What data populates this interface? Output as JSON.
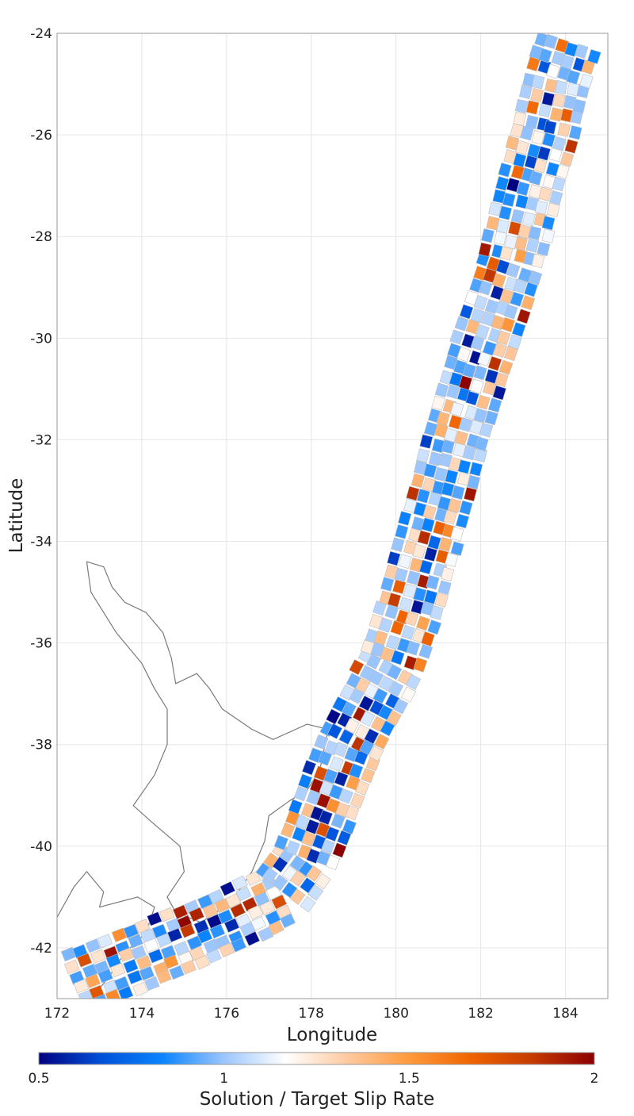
{
  "colors": {
    "background": "#ffffff",
    "frame": "#9a9a9a",
    "grid": "#e6e6e6",
    "coastline": "#7a7a7a",
    "patch_outline": "#bdbdbd",
    "colormap_stops": [
      "#000080",
      "#0050d8",
      "#0a84ff",
      "#9cc6ff",
      "#ffffff",
      "#ffc9a0",
      "#ff9a3c",
      "#f06400",
      "#c43a00",
      "#8b0000"
    ]
  },
  "chart_data": {
    "type": "heatmap",
    "map_type": "fault-section slip-rate ratio map",
    "xlabel": "Longitude",
    "ylabel": "Latitude",
    "xlim": [
      172,
      185
    ],
    "ylim": [
      -43,
      -24
    ],
    "x_ticks": [
      "172",
      "174",
      "176",
      "178",
      "180",
      "182",
      "184"
    ],
    "y_ticks": [
      "-24",
      "-26",
      "-28",
      "-30",
      "-32",
      "-34",
      "-36",
      "-38",
      "-40",
      "-42"
    ],
    "grid": true,
    "colorbar": {
      "title": "Solution / Target Slip Rate",
      "range": [
        0.5,
        2
      ],
      "tick_labels": [
        "0.5",
        "1",
        "1.5",
        "2"
      ],
      "placement": "bottom"
    },
    "subduction_centerline": [
      [
        172.4,
        -42.7
      ],
      [
        173.6,
        -42.3
      ],
      [
        175.1,
        -41.8
      ],
      [
        176.2,
        -41.4
      ],
      [
        177.2,
        -41.0
      ],
      [
        177.9,
        -40.2
      ],
      [
        178.4,
        -39.1
      ],
      [
        178.9,
        -38.0
      ],
      [
        179.4,
        -37.2
      ],
      [
        179.9,
        -36.4
      ],
      [
        180.3,
        -35.4
      ],
      [
        180.7,
        -34.2
      ],
      [
        181.1,
        -33.0
      ],
      [
        181.4,
        -32.0
      ],
      [
        181.9,
        -30.6
      ],
      [
        182.3,
        -29.6
      ],
      [
        182.7,
        -28.6
      ],
      [
        183.1,
        -27.2
      ],
      [
        183.5,
        -26.0
      ],
      [
        183.8,
        -24.9
      ],
      [
        184.1,
        -24.1
      ]
    ],
    "coastline": [
      [
        172.7,
        -34.4
      ],
      [
        173.1,
        -34.5
      ],
      [
        173.3,
        -34.9
      ],
      [
        173.6,
        -35.2
      ],
      [
        174.1,
        -35.4
      ],
      [
        174.5,
        -35.8
      ],
      [
        174.7,
        -36.3
      ],
      [
        174.8,
        -36.8
      ],
      [
        175.3,
        -36.6
      ],
      [
        175.6,
        -36.9
      ],
      [
        175.9,
        -37.3
      ],
      [
        176.6,
        -37.7
      ],
      [
        177.1,
        -37.9
      ],
      [
        177.9,
        -37.6
      ],
      [
        178.4,
        -37.7
      ],
      [
        178.2,
        -38.5
      ],
      [
        177.9,
        -38.9
      ],
      [
        177.5,
        -39.1
      ],
      [
        177.0,
        -39.4
      ],
      [
        176.9,
        -39.9
      ],
      [
        176.6,
        -40.5
      ],
      [
        176.1,
        -41.1
      ],
      [
        175.4,
        -41.5
      ],
      [
        174.8,
        -41.3
      ],
      [
        174.6,
        -41.0
      ],
      [
        175.0,
        -40.5
      ],
      [
        174.9,
        -40.0
      ],
      [
        174.2,
        -39.5
      ],
      [
        173.8,
        -39.2
      ],
      [
        174.3,
        -38.6
      ],
      [
        174.6,
        -38.0
      ],
      [
        174.6,
        -37.3
      ],
      [
        174.3,
        -36.9
      ],
      [
        174.0,
        -36.4
      ],
      [
        173.4,
        -35.8
      ],
      [
        172.8,
        -35.0
      ],
      [
        172.7,
        -34.4
      ]
    ],
    "coastline_south": [
      [
        172.0,
        -41.4
      ],
      [
        172.4,
        -40.8
      ],
      [
        172.7,
        -40.5
      ],
      [
        173.1,
        -40.9
      ],
      [
        173.0,
        -41.2
      ],
      [
        173.9,
        -41.0
      ],
      [
        174.3,
        -41.2
      ],
      [
        174.1,
        -41.7
      ],
      [
        173.6,
        -42.1
      ],
      [
        173.2,
        -42.6
      ],
      [
        172.8,
        -43.0
      ]
    ]
  }
}
